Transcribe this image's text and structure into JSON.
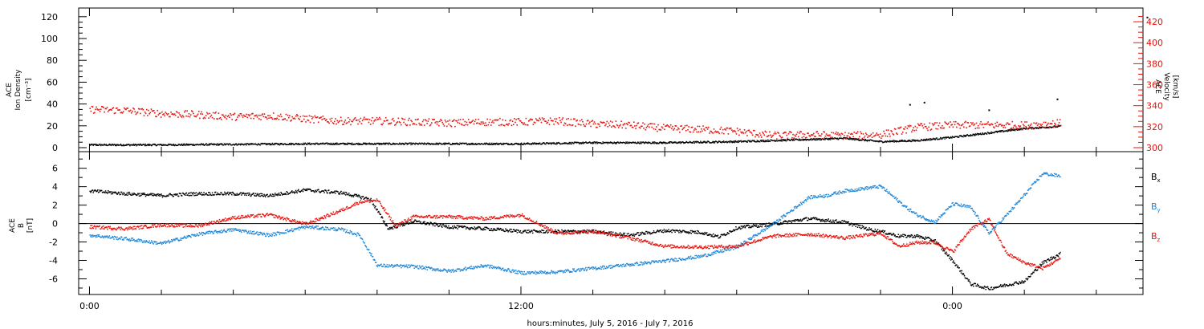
{
  "chart_data": [
    {
      "type": "scatter",
      "panel": "top",
      "ylabel_left": [
        "ACE",
        "Ion Density",
        "[cm⁻³]"
      ],
      "ylabel_right": [
        "ACE",
        "Velocity",
        "[km/s]"
      ],
      "ylim_left": [
        0,
        125
      ],
      "yticks_left": [
        "0",
        "20",
        "40",
        "60",
        "80",
        "100",
        "120"
      ],
      "ylim_right": [
        300,
        430
      ],
      "yticks_right": [
        "300",
        "320",
        "340",
        "360",
        "380",
        "400",
        "420"
      ],
      "right_axis_color": "#e8140f",
      "series": [
        {
          "axis": "left",
          "color": "#000000",
          "x": [
            0,
            2,
            4,
            6,
            8,
            10,
            12,
            14,
            16,
            18,
            19,
            20,
            21,
            22,
            23,
            24,
            25,
            26,
            27
          ],
          "y": [
            3,
            3,
            3.5,
            4,
            4,
            4,
            4,
            5,
            5,
            6,
            7,
            8,
            9,
            6,
            7,
            10,
            14,
            18,
            20
          ]
        },
        {
          "axis": "left",
          "color": "#000000",
          "x": [
            22.8,
            23.2,
            25.0,
            26.9,
            29.4
          ],
          "y": [
            40,
            42,
            35,
            45,
            120
          ]
        },
        {
          "axis": "right",
          "color": "#e8140f",
          "x": [
            0,
            1,
            2,
            3,
            4,
            5,
            6,
            7,
            8,
            9,
            10,
            11,
            12,
            13,
            14,
            15,
            16,
            17,
            18,
            19,
            20,
            21,
            22,
            23,
            24,
            25,
            26,
            27
          ],
          "y": [
            337,
            336,
            333,
            332,
            330,
            331,
            328,
            326,
            326,
            325,
            324,
            325,
            325,
            326,
            323,
            322,
            319,
            318,
            316,
            312,
            313,
            312,
            313,
            320,
            322,
            322,
            322,
            324
          ]
        }
      ]
    },
    {
      "type": "scatter",
      "panel": "bottom",
      "ylabel_left": [
        "ACE",
        "B",
        "[nT]"
      ],
      "ylim": [
        -7.7,
        7.8
      ],
      "yticks": [
        "-6",
        "-4",
        "-2",
        "0",
        "2",
        "4",
        "6"
      ],
      "zero_line": true,
      "xlabel": "hours:minutes, July  5, 2016 - July  7, 2016",
      "xticks": [
        "0:00",
        "12:00",
        "0:00"
      ],
      "xtick_hours": [
        0,
        12,
        24
      ],
      "xlim": [
        -0.3,
        29.3
      ],
      "legend": [
        {
          "label": "B",
          "sub": "x",
          "color": "#000000"
        },
        {
          "label": "B",
          "sub": "y",
          "color": "#1f86d6"
        },
        {
          "label": "B",
          "sub": "z",
          "color": "#e8140f"
        }
      ],
      "series": [
        {
          "name": "Bx",
          "color": "#000000",
          "x": [
            0,
            1,
            2,
            3,
            4,
            5,
            6,
            7,
            7.8,
            8.3,
            9,
            10,
            11,
            12,
            13,
            14,
            15,
            16,
            17,
            17.5,
            18,
            19,
            20,
            20.5,
            21,
            21.7,
            22,
            22.5,
            23,
            23.5,
            24,
            24.5,
            25,
            25.5,
            26,
            26.5,
            27
          ],
          "y": [
            3.6,
            3.3,
            3.1,
            3.3,
            3.3,
            3.1,
            3.7,
            3.4,
            2.7,
            -0.5,
            0.3,
            -0.3,
            -0.5,
            -0.8,
            -0.8,
            -0.8,
            -1.2,
            -0.7,
            -0.9,
            -1.4,
            -0.4,
            0,
            0.6,
            0.4,
            0.2,
            -0.6,
            -0.8,
            -1.3,
            -1.3,
            -1.8,
            -4,
            -6.5,
            -7,
            -6.6,
            -6.2,
            -4.2,
            -3.2
          ]
        },
        {
          "name": "By",
          "color": "#1f86d6",
          "x": [
            0,
            1,
            2,
            3,
            4,
            5,
            6,
            7,
            7.5,
            8,
            9,
            10,
            11,
            12,
            13,
            14,
            15,
            16,
            17,
            18,
            19,
            20,
            20.5,
            21,
            22,
            22.7,
            23,
            23.5,
            24,
            24.5,
            25,
            25.5,
            26,
            26.5,
            27
          ],
          "y": [
            -1.2,
            -1.6,
            -2.1,
            -1.1,
            -0.6,
            -1.2,
            -0.3,
            -0.6,
            -1.2,
            -4.5,
            -4.6,
            -5.1,
            -4.5,
            -5.3,
            -5.2,
            -4.8,
            -4.4,
            -4.0,
            -3.5,
            -2.5,
            0,
            2.9,
            3.1,
            3.6,
            4.1,
            1.8,
            1.0,
            0.2,
            2.2,
            1.8,
            -1.0,
            1.0,
            3.2,
            5.5,
            5.2
          ]
        },
        {
          "name": "Bz",
          "color": "#e8140f",
          "x": [
            0,
            1,
            2,
            3,
            4,
            5,
            6,
            7,
            7.5,
            8,
            8.5,
            9,
            10,
            11,
            12,
            13,
            14,
            15,
            16,
            17,
            18,
            19,
            20,
            21,
            22,
            22.5,
            23,
            23.5,
            24,
            24.5,
            25,
            25.5,
            26,
            26.5,
            27
          ],
          "y": [
            -0.3,
            -0.5,
            -0.1,
            -0.2,
            0.7,
            1.0,
            0.0,
            1.5,
            2.4,
            2.6,
            -0.2,
            0.8,
            0.8,
            0.6,
            1.0,
            -1.0,
            -0.8,
            -1.5,
            -2.4,
            -2.5,
            -2.4,
            -1.3,
            -1.1,
            -1.5,
            -1.0,
            -2.4,
            -2.0,
            -2.0,
            -3.0,
            -0.5,
            0.5,
            -3.2,
            -4.2,
            -4.8,
            -3.7
          ]
        }
      ]
    }
  ]
}
